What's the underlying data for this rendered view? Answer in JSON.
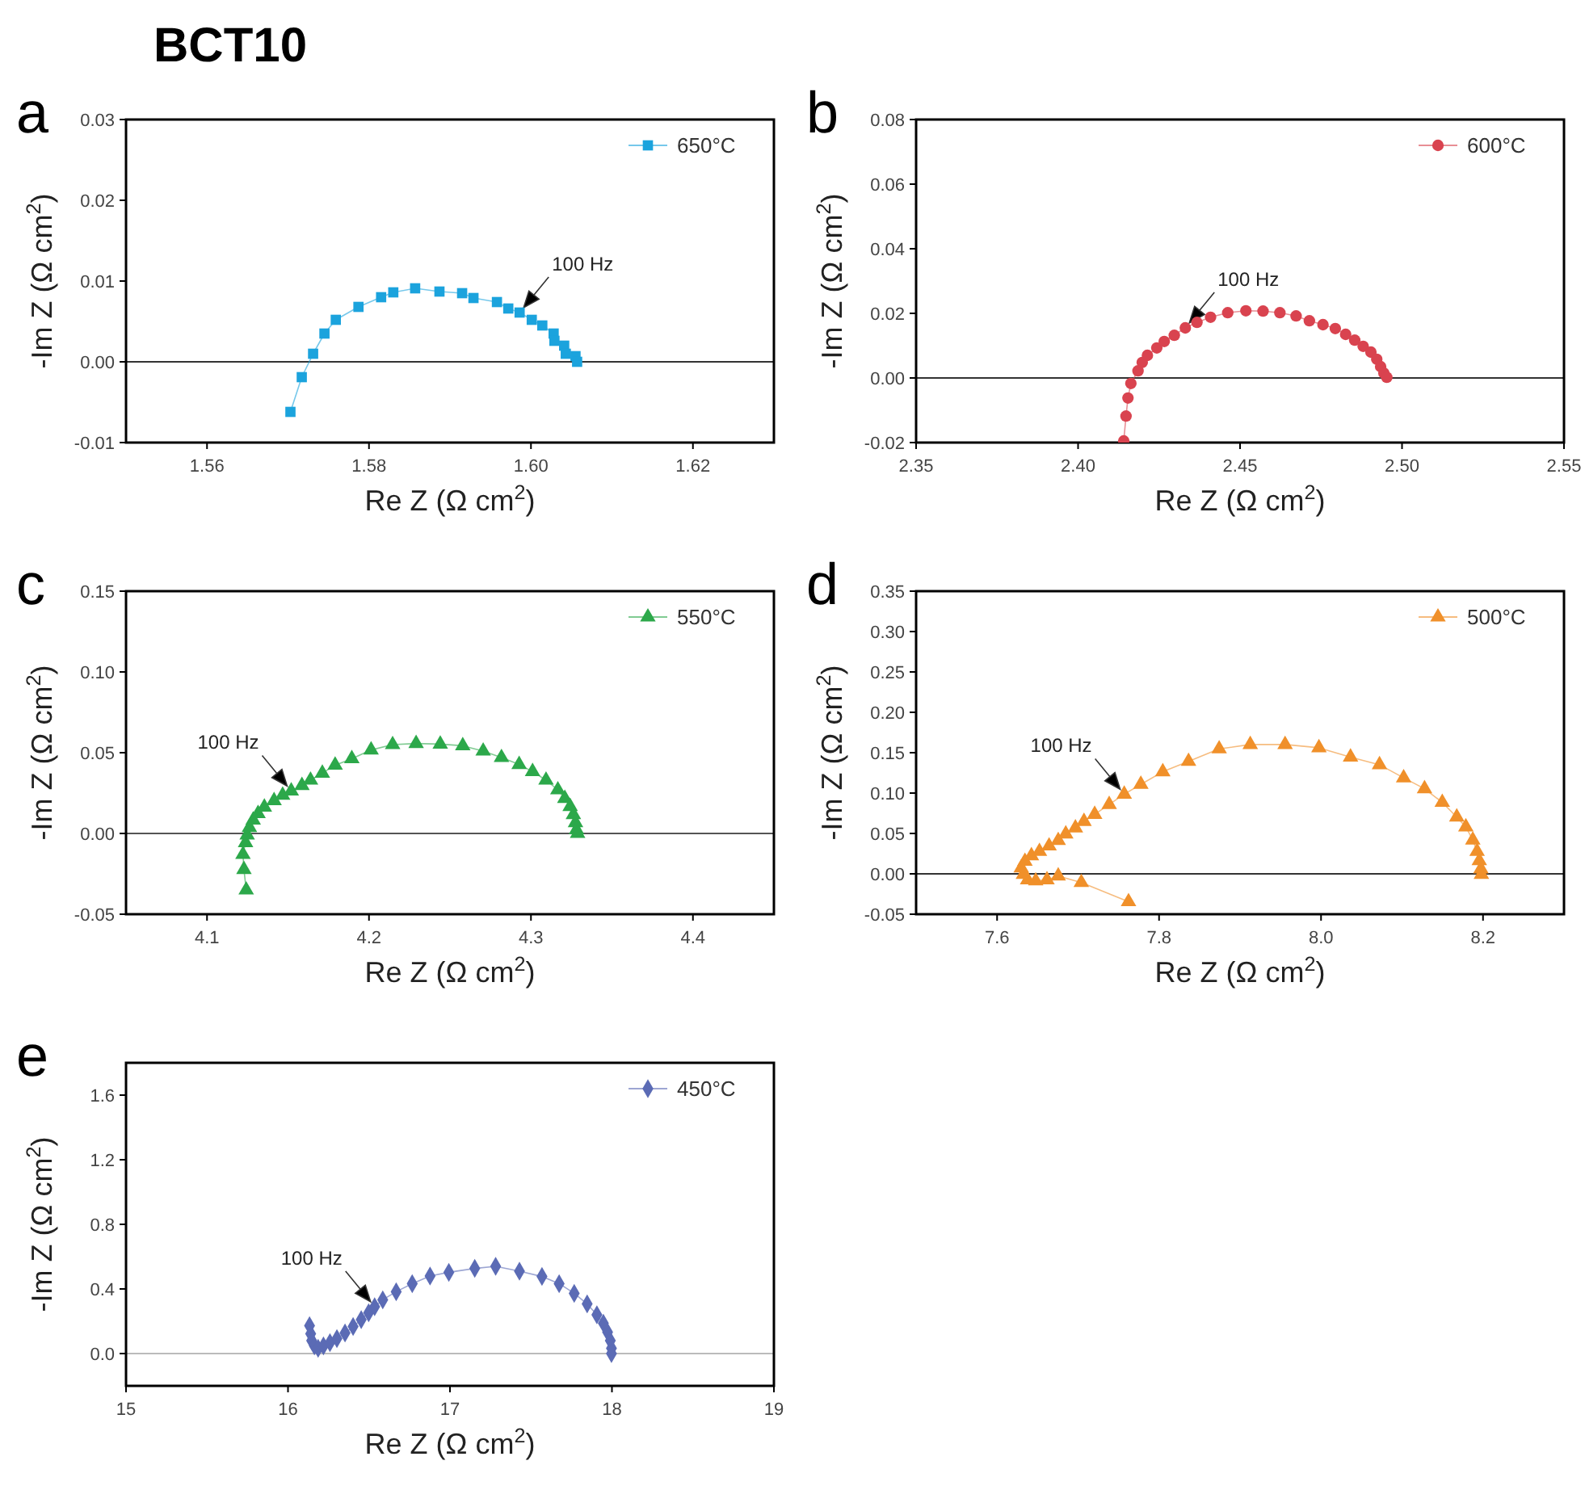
{
  "chart_data": [
    {
      "type": "line",
      "title": "a",
      "annotations": [
        "BCT10",
        {
          "text": "100 Hz",
          "x": 1.5986,
          "y": 0.0061
        }
      ],
      "xlabel": "Re Z (Ω cm$^{2}$)",
      "ylabel": "-Im Z (Ω cm$^{2}$)",
      "xlim": [
        1.55,
        1.63
      ],
      "xticks": [
        1.56,
        1.58,
        {
          "value": 1.6,
          "label": "1.60"
        },
        1.62
      ],
      "ylim": [
        -0.01,
        0.03
      ],
      "yticks": [
        -0.01,
        {
          "value": 0,
          "label": "0.00"
        },
        0.01,
        0.02,
        0.03
      ],
      "marker": "square",
      "line_style": "solid",
      "legend": "top right",
      "ref_lines": [
        {
          "axis": "y",
          "value": 0,
          "color": "#333333"
        }
      ],
      "series": [
        {
          "name": "650°C",
          "color": "#1ba3dd",
          "x": [
            1.5703,
            1.5717,
            1.5731,
            1.5745,
            1.5759,
            1.5787,
            1.5815,
            1.583,
            1.5857,
            1.5887,
            1.5915,
            1.5929,
            1.5958,
            1.5972,
            1.5986,
            1.6001,
            1.6014,
            1.6028,
            1.6029,
            1.6041,
            1.6043,
            1.6055,
            1.6057
          ],
          "values": [
            -0.0062,
            -0.0019,
            0.001,
            0.0035,
            0.0052,
            0.0068,
            0.008,
            0.0086,
            0.0091,
            0.0087,
            0.0085,
            0.0079,
            0.0074,
            0.0066,
            0.0061,
            0.0052,
            0.0045,
            0.0035,
            0.0026,
            0.002,
            0.001,
            0.0007,
            0
          ]
        }
      ]
    },
    {
      "type": "line",
      "title": "b",
      "annotations": [
        {
          "text": "100 Hz",
          "x": 2.4331,
          "y": 0.0155
        }
      ],
      "xlabel": "Re Z (Ω cm$^{2}$)",
      "ylabel": "-Im Z (Ω cm$^{2}$)",
      "xlim": [
        2.35,
        2.55
      ],
      "xticks": [
        2.35,
        {
          "value": 2.4,
          "label": "2.40"
        },
        2.45,
        {
          "value": 2.5,
          "label": "2.50"
        },
        2.55
      ],
      "ylim": [
        -0.02,
        0.08
      ],
      "yticks": [
        -0.02,
        {
          "value": 0,
          "label": "0.00"
        },
        0.02,
        0.04,
        0.06,
        0.08
      ],
      "marker": "circle",
      "line_style": "solid",
      "legend": "top right",
      "ref_lines": [
        {
          "axis": "y",
          "value": 0,
          "color": "#333333"
        }
      ],
      "series": [
        {
          "name": "600°C",
          "color": "#d9434f",
          "x": [
            2.4141,
            2.4148,
            2.4154,
            2.4163,
            2.4185,
            2.4198,
            2.4214,
            2.4243,
            2.4266,
            2.4297,
            2.4331,
            2.4367,
            2.4409,
            2.4462,
            2.4518,
            2.4571,
            2.4623,
            2.4673,
            2.4714,
            2.4756,
            2.4794,
            2.4826,
            2.4854,
            2.488,
            2.4904,
            2.4922,
            2.4934,
            2.4944,
            2.4953
          ],
          "values": [
            -0.0195,
            -0.0118,
            -0.0062,
            -0.0017,
            0.0022,
            0.0048,
            0.007,
            0.0093,
            0.0113,
            0.0132,
            0.0155,
            0.0172,
            0.0188,
            0.0202,
            0.0208,
            0.0207,
            0.0202,
            0.0192,
            0.0177,
            0.0165,
            0.0153,
            0.0135,
            0.0117,
            0.0098,
            0.008,
            0.0058,
            0.0035,
            0.0015,
            0.0002
          ]
        }
      ]
    },
    {
      "type": "line",
      "title": "c",
      "annotations": [
        {
          "text": "100 Hz",
          "x": 4.152,
          "y": 0.0263
        }
      ],
      "xlabel": "Re Z (Ω cm$^{2}$)",
      "ylabel": "-Im Z (Ω cm$^{2}$)",
      "xlim": [
        4.05,
        4.45
      ],
      "xticks": [
        4.1,
        4.2,
        4.3,
        4.4
      ],
      "ylim": [
        -0.05,
        0.15
      ],
      "yticks": [
        -0.05,
        {
          "value": 0,
          "label": "0.00"
        },
        0.05,
        {
          "value": 0.1,
          "label": "0.10"
        },
        0.15
      ],
      "marker": "triangle",
      "line_style": "solid",
      "legend": "top right",
      "ref_lines": [
        {
          "axis": "y",
          "value": 0,
          "color": "#555555"
        }
      ],
      "series": [
        {
          "name": "550°C",
          "color": "#2ca84a",
          "x": [
            4.1242,
            4.1228,
            4.1222,
            4.1238,
            4.1248,
            4.1262,
            4.1285,
            4.1315,
            4.1354,
            4.1414,
            4.1467,
            4.152,
            4.1586,
            4.1639,
            4.1712,
            4.1791,
            4.1894,
            4.2013,
            4.2146,
            4.2291,
            4.244,
            4.2579,
            4.2705,
            4.2818,
            4.2927,
            4.301,
            4.3093,
            4.3166,
            4.3209,
            4.3242,
            4.3262,
            4.3275,
            4.3281,
            4.3288
          ],
          "values": [
            -0.035,
            -0.0223,
            -0.013,
            -0.0057,
            -0.001,
            0.0037,
            0.0083,
            0.0123,
            0.0163,
            0.0203,
            0.0237,
            0.0263,
            0.0297,
            0.033,
            0.0373,
            0.0423,
            0.0463,
            0.0517,
            0.055,
            0.0557,
            0.0553,
            0.0543,
            0.051,
            0.047,
            0.0427,
            0.0383,
            0.033,
            0.027,
            0.0217,
            0.0167,
            0.0117,
            0.0067,
            0.0023,
            0
          ]
        }
      ]
    },
    {
      "type": "line",
      "title": "d",
      "annotations": [
        {
          "text": "100 Hz",
          "x": 7.757,
          "y": 0.0986
        }
      ],
      "xlabel": "Re Z (Ω cm$^{2}$)",
      "ylabel": "-Im Z (Ω cm$^{2}$)",
      "xlim": [
        7.5,
        8.3
      ],
      "xticks": [
        7.6,
        7.8,
        {
          "value": 8,
          "label": "8.0"
        },
        8.2
      ],
      "ylim": [
        -0.05,
        0.35
      ],
      "yticks": [
        -0.05,
        {
          "value": 0,
          "label": "0.00"
        },
        0.05,
        {
          "value": 0.1,
          "label": "0.10"
        },
        0.15,
        {
          "value": 0.2,
          "label": "0.20"
        },
        0.25,
        {
          "value": 0.3,
          "label": "0.30"
        },
        0.35
      ],
      "marker": "triangle",
      "line_style": "solid",
      "legend": "top right",
      "ref_lines": [
        {
          "axis": "y",
          "value": 0,
          "color": "#333333"
        }
      ],
      "series": [
        {
          "name": "500°C",
          "color": "#f0902a",
          "x": [
            7.7623,
            7.704,
            7.6755,
            7.6616,
            7.6477,
            7.6377,
            7.6325,
            7.6298,
            7.6344,
            7.6424,
            7.6523,
            7.6642,
            7.6755,
            7.6848,
            7.6967,
            7.7073,
            7.7205,
            7.7384,
            7.757,
            7.7775,
            7.8046,
            7.8364,
            7.8742,
            7.9126,
            7.9556,
            7.9974,
            8.0364,
            8.0722,
            8.102,
            8.1278,
            8.1497,
            8.1676,
            8.1788,
            8.1874,
            8.1927,
            8.1954,
            8.1974,
            8.198
          ],
          "values": [
            -0.0345,
            -0.0108,
            -0.0027,
            -0.0074,
            -0.0088,
            -0.0074,
            -0.0007,
            0.0074,
            0.0155,
            0.0223,
            0.0277,
            0.0345,
            0.0412,
            0.0493,
            0.0568,
            0.0649,
            0.0736,
            0.0858,
            0.0986,
            0.1108,
            0.1264,
            0.1392,
            0.1547,
            0.1601,
            0.1601,
            0.1561,
            0.1446,
            0.1351,
            0.1189,
            0.1054,
            0.0885,
            0.0703,
            0.0581,
            0.0419,
            0.0277,
            0.0162,
            0.0061,
            -0.0007
          ]
        }
      ]
    },
    {
      "type": "line",
      "title": "e",
      "annotations": [
        {
          "text": "100 Hz",
          "x": 16.535,
          "y": 0.29
        }
      ],
      "xlabel": "Re Z (Ω cm$^{2}$)",
      "ylabel": "-Im Z (Ω cm$^{2}$)",
      "xlim": [
        15,
        19
      ],
      "xticks": [
        15,
        16,
        17,
        18,
        19
      ],
      "ylim": [
        -0.2,
        1.8
      ],
      "yticks": [
        {
          "value": 0,
          "label": "0.0"
        },
        0.4,
        0.8,
        1.2,
        1.6
      ],
      "marker": "diamond",
      "line_style": "solid",
      "legend": "top right",
      "ref_lines": [
        {
          "axis": "y",
          "value": 0,
          "color": "#bbbbbb"
        }
      ],
      "series": [
        {
          "name": "450°C",
          "color": "#5b6bb5",
          "x": [
            16.133,
            16.14,
            16.146,
            16.163,
            16.186,
            16.219,
            16.259,
            16.302,
            16.352,
            16.402,
            16.452,
            16.498,
            16.535,
            16.585,
            16.668,
            16.767,
            16.877,
            16.993,
            17.153,
            17.282,
            17.429,
            17.568,
            17.674,
            17.767,
            17.847,
            17.907,
            17.947,
            17.973,
            17.99,
            17.997,
            17.997
          ],
          "values": [
            0.173,
            0.123,
            0.08,
            0.047,
            0.033,
            0.047,
            0.067,
            0.093,
            0.127,
            0.167,
            0.21,
            0.253,
            0.29,
            0.333,
            0.383,
            0.433,
            0.48,
            0.503,
            0.527,
            0.54,
            0.51,
            0.477,
            0.433,
            0.373,
            0.307,
            0.24,
            0.187,
            0.133,
            0.08,
            0.033,
            0
          ]
        }
      ]
    }
  ]
}
